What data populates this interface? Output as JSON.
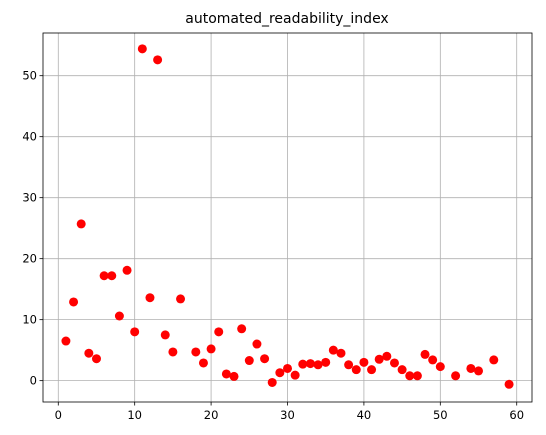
{
  "chart_data": {
    "type": "scatter",
    "title": "automated_readability_index",
    "xlabel": "",
    "ylabel": "",
    "xlim": [
      -2,
      62
    ],
    "ylim": [
      -3.5,
      57
    ],
    "xticks": [
      0,
      10,
      20,
      30,
      40,
      50,
      60
    ],
    "yticks": [
      0,
      10,
      20,
      30,
      40,
      50
    ],
    "grid": true,
    "marker_color": "#ff0000",
    "x": [
      1,
      2,
      3,
      4,
      5,
      6,
      7,
      8,
      9,
      10,
      11,
      12,
      13,
      14,
      15,
      16,
      18,
      19,
      20,
      21,
      22,
      23,
      24,
      25,
      26,
      27,
      28,
      29,
      30,
      31,
      32,
      33,
      34,
      35,
      36,
      37,
      38,
      39,
      40,
      41,
      42,
      43,
      44,
      45,
      46,
      47,
      48,
      49,
      50,
      52,
      54,
      55,
      57,
      59
    ],
    "y": [
      6.5,
      12.9,
      25.7,
      4.5,
      3.6,
      17.2,
      17.2,
      10.6,
      18.1,
      8.0,
      54.4,
      13.6,
      52.6,
      7.5,
      4.7,
      13.4,
      4.7,
      2.9,
      5.2,
      8.0,
      1.1,
      0.7,
      8.5,
      3.3,
      6.0,
      3.6,
      -0.3,
      1.3,
      2.0,
      0.9,
      2.7,
      2.8,
      2.6,
      3.0,
      5.0,
      4.5,
      2.6,
      1.8,
      3.0,
      1.8,
      3.5,
      4.0,
      2.9,
      1.8,
      0.8,
      0.8,
      4.3,
      3.4,
      2.3,
      0.8,
      2.0,
      1.6,
      3.4,
      -0.6
    ]
  }
}
